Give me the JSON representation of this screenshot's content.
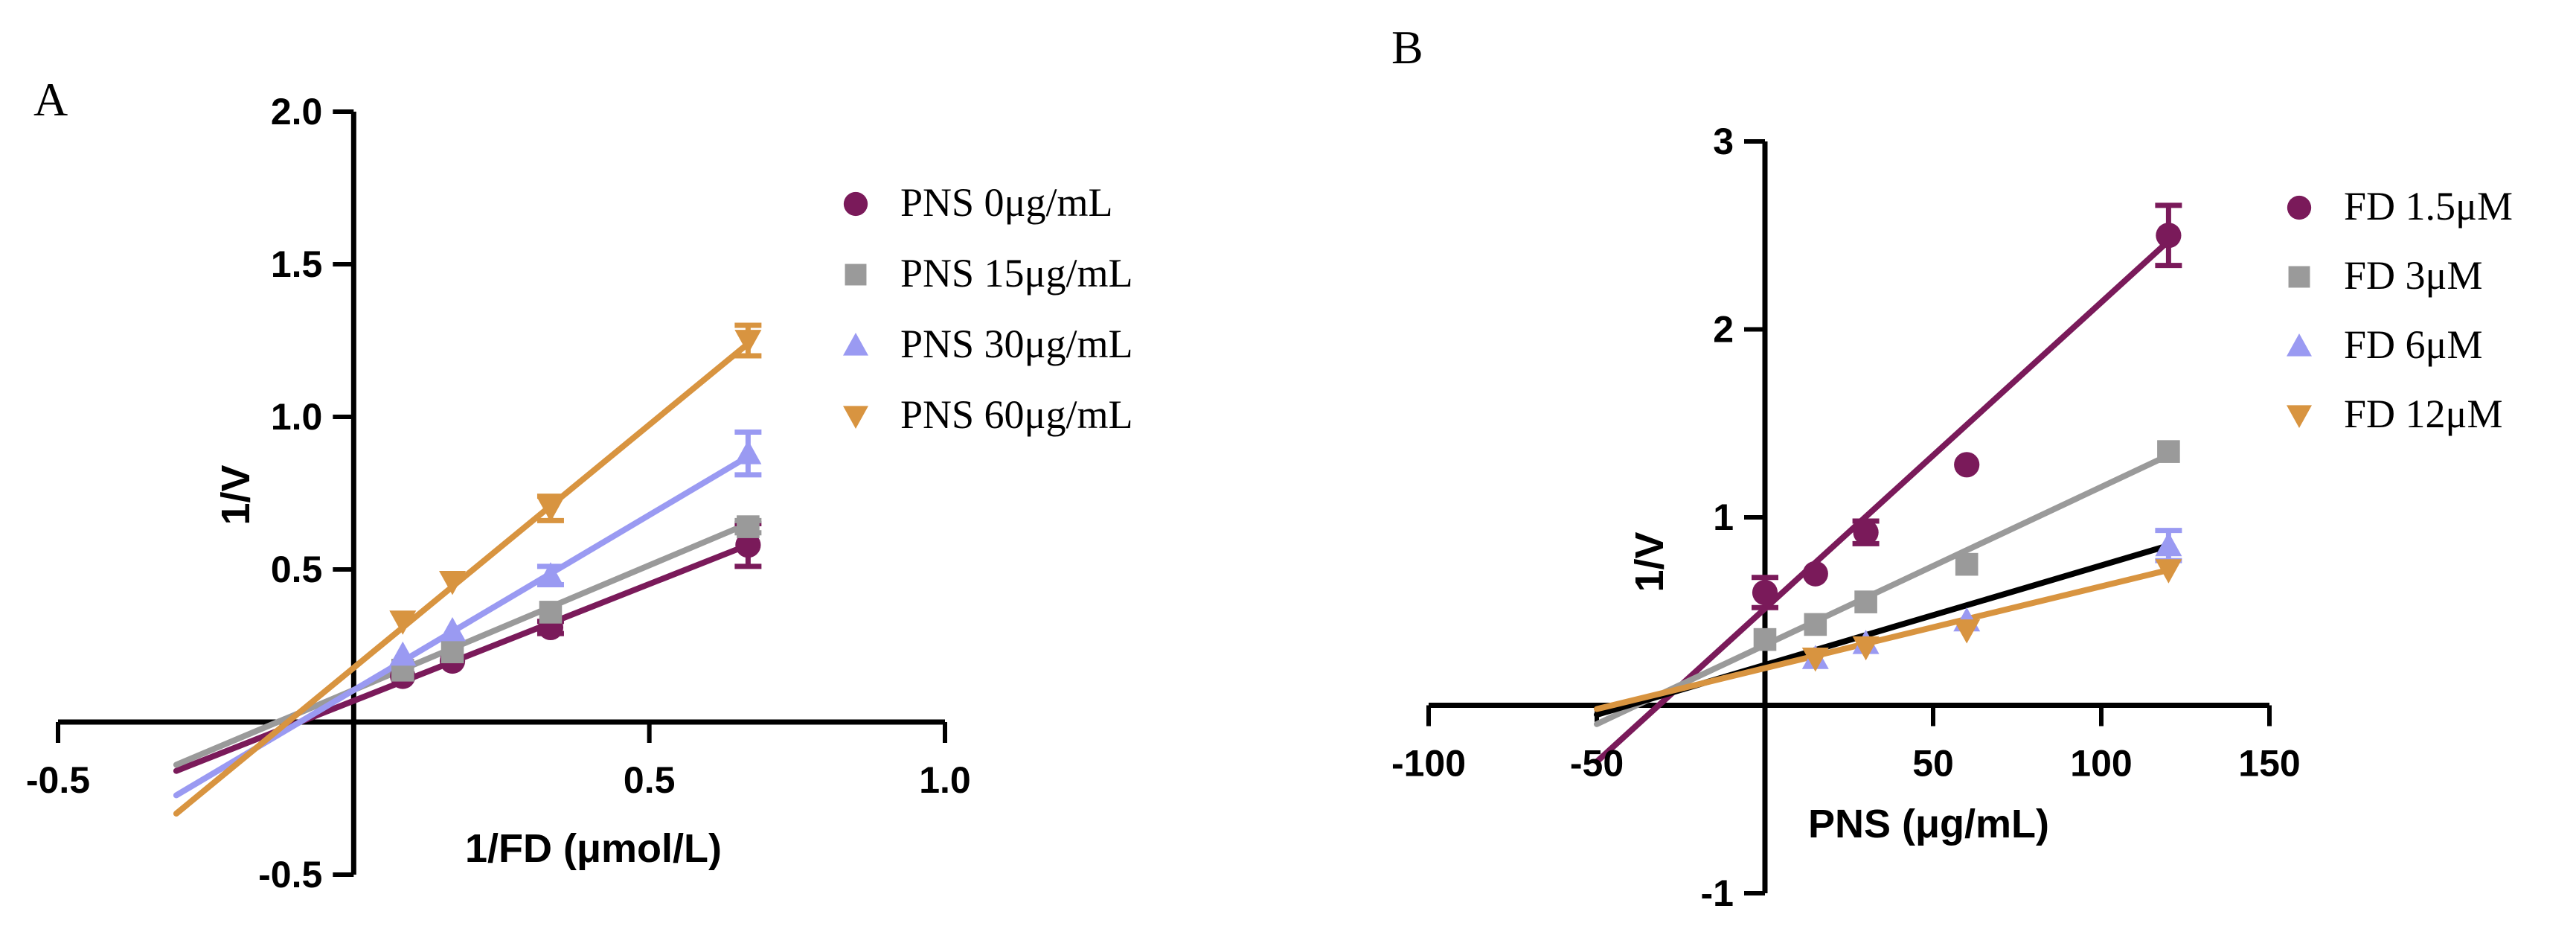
{
  "chart_data": [
    {
      "panel": "A",
      "type": "line",
      "title": "",
      "xlabel": "1/FD (μmol/L)",
      "ylabel": "1/V",
      "xlim": [
        -0.5,
        1.0
      ],
      "ylim": [
        -0.5,
        2.0
      ],
      "xticks": [
        -0.5,
        0.5,
        1.0
      ],
      "xtick_labels": [
        "-0.5",
        "0.5",
        "1.0"
      ],
      "yticks": [
        -0.5,
        0.5,
        1.0,
        1.5,
        2.0
      ],
      "ytick_labels": [
        "-0.5",
        "0.5",
        "1.0",
        "1.5",
        "2.0"
      ],
      "minor_xticks": [
        0.0
      ],
      "minor_yticks": [
        0.0
      ],
      "legend_position": "right",
      "series": [
        {
          "name": "PNS 0μg/mL",
          "marker": "circle",
          "color": "#7a1a5a",
          "x": [
            0.083,
            0.167,
            0.333,
            0.667
          ],
          "y": [
            0.15,
            0.2,
            0.31,
            0.58
          ],
          "err": [
            0.0,
            0.0,
            0.02,
            0.07
          ],
          "fit_x": [
            -0.3,
            0.667
          ],
          "fit_y": [
            -0.16,
            0.58
          ]
        },
        {
          "name": "PNS 15μg/mL",
          "marker": "square",
          "color": "#9a9a9a",
          "x": [
            0.083,
            0.167,
            0.333,
            0.667
          ],
          "y": [
            0.17,
            0.23,
            0.36,
            0.64
          ],
          "err": [
            0.0,
            0.0,
            0.0,
            0.02
          ],
          "fit_x": [
            -0.3,
            0.667
          ],
          "fit_y": [
            -0.14,
            0.65
          ]
        },
        {
          "name": "PNS 30μg/mL",
          "marker": "triangle-up",
          "color": "#9a9af2",
          "x": [
            0.083,
            0.167,
            0.333,
            0.667
          ],
          "y": [
            0.22,
            0.3,
            0.48,
            0.88
          ],
          "err": [
            0.0,
            0.0,
            0.03,
            0.07
          ],
          "fit_x": [
            -0.3,
            0.667
          ],
          "fit_y": [
            -0.24,
            0.87
          ]
        },
        {
          "name": "PNS 60μg/mL",
          "marker": "triangle-down",
          "color": "#d89440",
          "x": [
            0.083,
            0.167,
            0.333,
            0.667
          ],
          "y": [
            0.33,
            0.46,
            0.7,
            1.25
          ],
          "err": [
            0.0,
            0.0,
            0.04,
            0.05
          ],
          "fit_x": [
            -0.3,
            0.667
          ],
          "fit_y": [
            -0.3,
            1.24
          ]
        }
      ]
    },
    {
      "panel": "B",
      "type": "line",
      "title": "",
      "xlabel": "PNS (μg/mL)",
      "ylabel": "1/V",
      "xlim": [
        -100,
        150
      ],
      "ylim": [
        -1,
        3
      ],
      "xticks": [
        -100,
        -50,
        50,
        100,
        150
      ],
      "xtick_labels": [
        "-100",
        "-50",
        "50",
        "100",
        "150"
      ],
      "yticks": [
        -1,
        1,
        2,
        3
      ],
      "ytick_labels": [
        "-1",
        "1",
        "2",
        "3"
      ],
      "minor_xticks": [
        0
      ],
      "minor_yticks": [
        0
      ],
      "legend_position": "right",
      "series": [
        {
          "name": "FD 1.5μM",
          "marker": "circle",
          "color": "#7a1a5a",
          "x": [
            0,
            15,
            30,
            60,
            120
          ],
          "y": [
            0.6,
            0.7,
            0.92,
            1.28,
            2.5
          ],
          "err": [
            0.08,
            0.0,
            0.06,
            0.0,
            0.16
          ],
          "fit_x": [
            -50,
            120
          ],
          "fit_y": [
            -0.3,
            2.47
          ]
        },
        {
          "name": "FD 3μM",
          "marker": "square",
          "color": "#9a9a9a",
          "x": [
            0,
            15,
            30,
            60,
            120
          ],
          "y": [
            0.35,
            0.43,
            0.55,
            0.75,
            1.35
          ],
          "err": [
            0.0,
            0.0,
            0.0,
            0.0,
            0.0
          ],
          "fit_x": [
            -50,
            120
          ],
          "fit_y": [
            -0.1,
            1.33
          ]
        },
        {
          "name": "FD  6μM",
          "marker": "triangle-up",
          "color": "#9a9af2",
          "x": [
            15,
            30,
            60,
            120
          ],
          "y": [
            0.25,
            0.33,
            0.45,
            0.85
          ],
          "err": [
            0.0,
            0.0,
            0.0,
            0.08
          ],
          "fit_x": [
            -50,
            120
          ],
          "fit_y": [
            -0.05,
            0.85
          ],
          "fit_color": "#000000"
        },
        {
          "name": "FD 12μM",
          "marker": "triangle-down",
          "color": "#d89440",
          "x": [
            15,
            30,
            60,
            120
          ],
          "y": [
            0.25,
            0.31,
            0.4,
            0.72
          ],
          "err": [
            0.0,
            0.0,
            0.0,
            0.0
          ],
          "fit_x": [
            -50,
            120
          ],
          "fit_y": [
            -0.02,
            0.72
          ]
        }
      ]
    }
  ]
}
